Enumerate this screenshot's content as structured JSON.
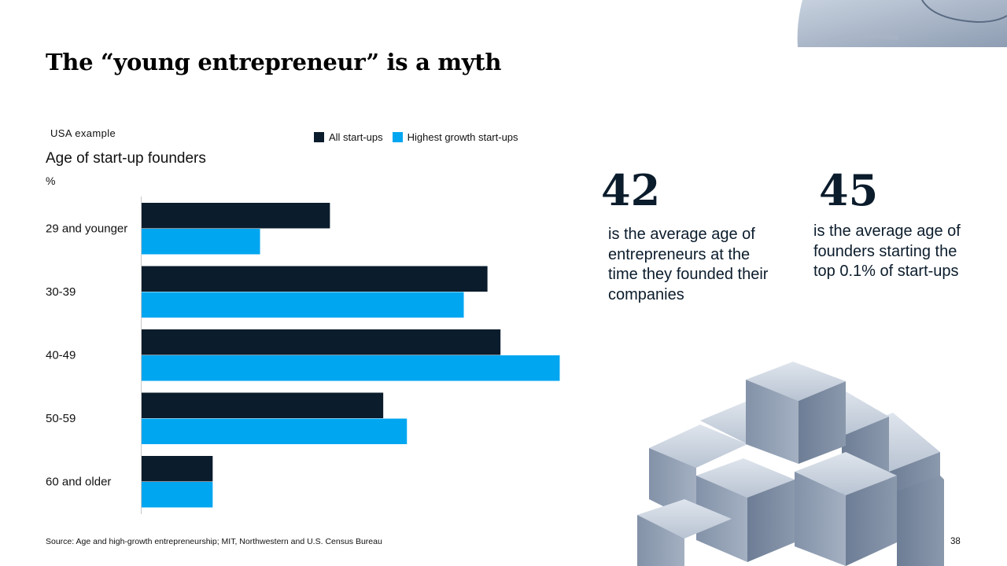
{
  "title": "The “young entrepreneur” is a myth",
  "region_label": "USA example",
  "legend": [
    {
      "label": "All start-ups",
      "color": "#0b1c2c"
    },
    {
      "label": "Highest growth start-ups",
      "color": "#00a6f0"
    }
  ],
  "chart_data": {
    "type": "bar",
    "orientation": "horizontal",
    "title": "Age of start-up founders",
    "unit": "%",
    "categories": [
      "29 and younger",
      "30-39",
      "40-49",
      "50-59",
      "60 and older"
    ],
    "series": [
      {
        "name": "All start-ups",
        "color": "#0b1c2c",
        "values": [
          15.9,
          29.2,
          30.3,
          20.4,
          6.0
        ]
      },
      {
        "name": "Highest growth start-ups",
        "color": "#00a6f0",
        "values": [
          10.0,
          27.2,
          35.3,
          22.4,
          6.0
        ]
      }
    ],
    "xlim": [
      0,
      36
    ],
    "grid": false,
    "legend_position": "top"
  },
  "stats": [
    {
      "value": "42",
      "text": "is the average age of entrepreneurs at the time they founded their companies"
    },
    {
      "value": "45",
      "text": "is the average age of founders starting the top 0.1% of start-ups"
    }
  ],
  "source": "Source: Age and high-growth entrepreneurship; MIT, Northwestern and U.S. Census Bureau",
  "page_number": "38"
}
